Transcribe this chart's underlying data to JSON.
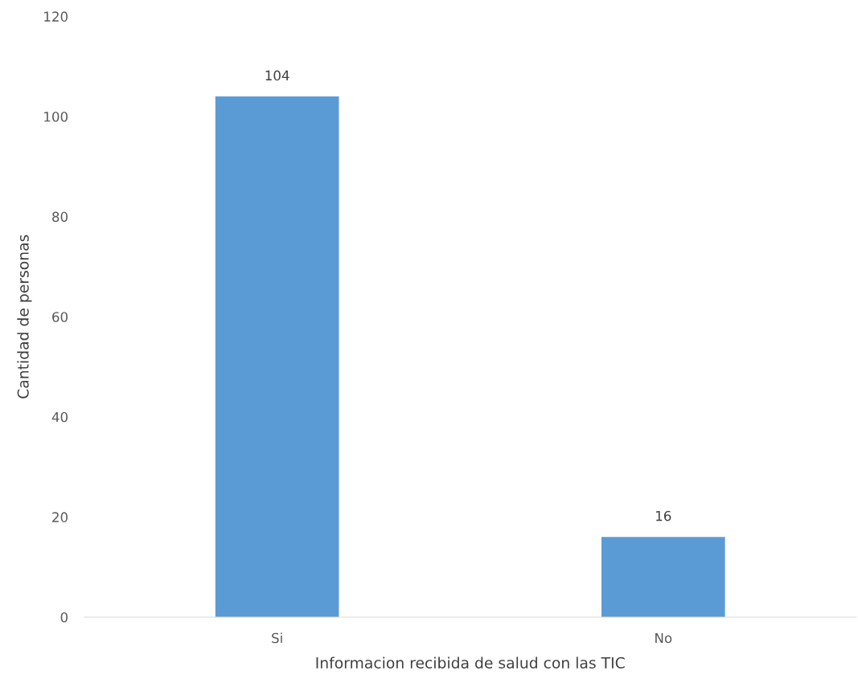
{
  "chart_data": {
    "type": "bar",
    "xlabel": "Informacion recibida de salud con las TIC",
    "ylabel": "Cantidad de personas",
    "categories": [
      "Si",
      "No"
    ],
    "values": [
      104,
      16
    ],
    "color": "#5b9bd5",
    "ylim": [
      0,
      120
    ],
    "yticks": [
      0,
      20,
      40,
      60,
      80,
      100,
      120
    ],
    "grid": false,
    "data_labels": true
  }
}
